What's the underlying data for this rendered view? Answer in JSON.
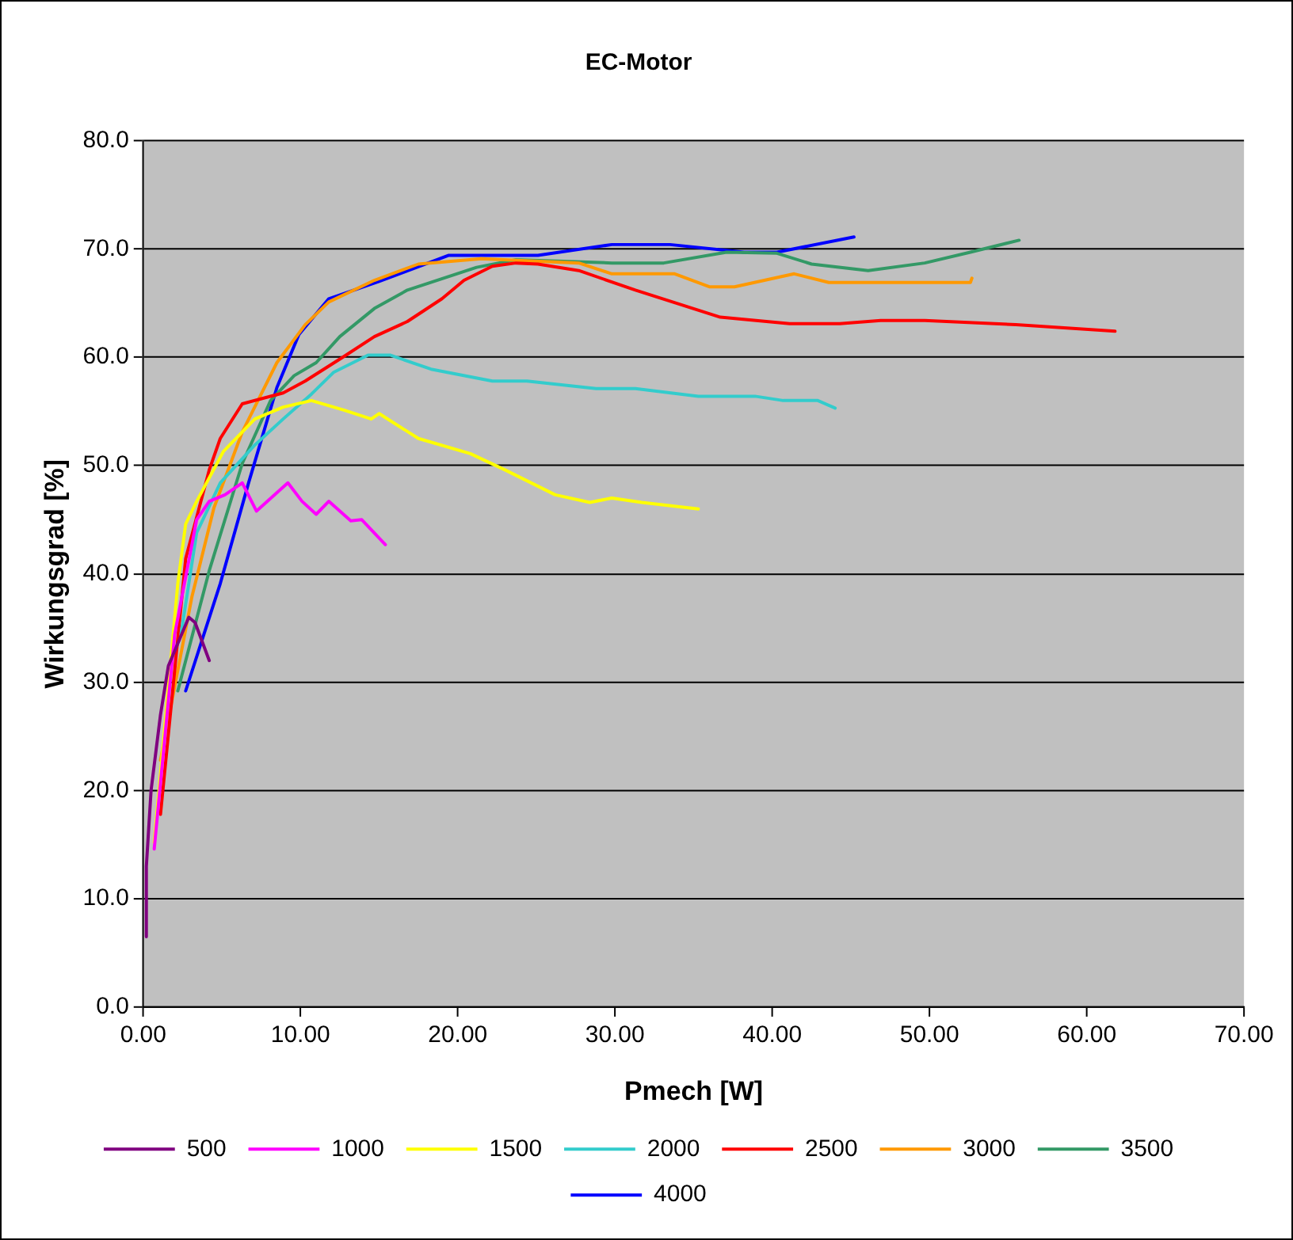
{
  "chart_data": {
    "type": "line",
    "title": "EC-Motor",
    "xlabel": "Pmech [W]",
    "ylabel": "Wirkungsgrad [%]",
    "xlim": [
      0,
      70
    ],
    "xticks": [
      {
        "value": 0,
        "label": "0.00"
      },
      {
        "value": 10,
        "label": "10.00"
      },
      {
        "value": 20,
        "label": "20.00"
      },
      {
        "value": 30,
        "label": "30.00"
      },
      {
        "value": 40,
        "label": "40.00"
      },
      {
        "value": 50,
        "label": "50.00"
      },
      {
        "value": 60,
        "label": "60.00"
      },
      {
        "value": 70,
        "label": "70.00"
      }
    ],
    "ylim": [
      0,
      80
    ],
    "yticks": [
      {
        "value": 0,
        "label": "0.0"
      },
      {
        "value": 10,
        "label": "10.0"
      },
      {
        "value": 20,
        "label": "20.0"
      },
      {
        "value": 30,
        "label": "30.0"
      },
      {
        "value": 40,
        "label": "40.0"
      },
      {
        "value": 50,
        "label": "50.0"
      },
      {
        "value": 60,
        "label": "60.0"
      },
      {
        "value": 70,
        "label": "70.0"
      },
      {
        "value": 80,
        "label": "80.0"
      }
    ],
    "grid": "y",
    "legend": "bottom",
    "marker": "none",
    "line_style": "solid",
    "series": [
      {
        "name": "500",
        "color": "#800080",
        "x": [
          0.2,
          0.2,
          0.5,
          1.1,
          1.6,
          2.9,
          3.3,
          4.2
        ],
        "values": [
          6.5,
          13,
          20,
          27,
          31.5,
          36,
          35.5,
          32
        ]
      },
      {
        "name": "1000",
        "color": "#ff00ff",
        "x": [
          0.7,
          2.0,
          3.4,
          4.2,
          5.2,
          6.3,
          7.2,
          9.2,
          10.1,
          11.0,
          11.8,
          13.2,
          13.9,
          15.4
        ],
        "values": [
          14.6,
          34.4,
          45,
          46.7,
          47.3,
          48.4,
          45.8,
          48.4,
          46.7,
          45.5,
          46.7,
          44.9,
          45,
          42.7
        ]
      },
      {
        "name": "1500",
        "color": "#ffff00",
        "x": [
          0.7,
          2.2,
          2.7,
          3.4,
          5.1,
          7.1,
          8.9,
          10.7,
          12.8,
          14.5,
          15.0,
          17.5,
          20.8,
          23.0,
          26.2,
          28.4,
          29.8,
          31.7,
          35.3
        ],
        "values": [
          15.2,
          39.1,
          44.6,
          46.7,
          51.3,
          54.3,
          55.4,
          56.0,
          55.1,
          54.3,
          54.8,
          52.5,
          51.1,
          49.6,
          47.3,
          46.6,
          47.0,
          46.6,
          46.0
        ]
      },
      {
        "name": "2000",
        "color": "#33cccc",
        "x": [
          2.4,
          3.4,
          4.9,
          7.1,
          8.9,
          10.7,
          12.1,
          14.3,
          15.7,
          18.3,
          22.2,
          24.4,
          28.8,
          31.3,
          35.3,
          38.9,
          40.7,
          42.9,
          44.0
        ],
        "values": [
          34.4,
          43.8,
          48.4,
          51.9,
          54.3,
          56.6,
          58.6,
          60.2,
          60.2,
          58.9,
          57.8,
          57.8,
          57.1,
          57.1,
          56.4,
          56.4,
          56.0,
          56.0,
          55.3
        ]
      },
      {
        "name": "2500",
        "color": "#ff0000",
        "x": [
          1.1,
          2.7,
          4.2,
          4.9,
          6.3,
          8.9,
          10.3,
          12.8,
          14.7,
          16.8,
          19.0,
          20.4,
          22.2,
          23.7,
          25.1,
          27.7,
          31.3,
          36.7,
          41.1,
          44.3,
          46.9,
          49.7,
          55.5,
          61.8
        ],
        "values": [
          17.8,
          41.4,
          49.6,
          52.5,
          55.7,
          56.7,
          57.8,
          60.1,
          61.9,
          63.3,
          65.4,
          67.1,
          68.4,
          68.7,
          68.6,
          68.0,
          66.2,
          63.7,
          63.1,
          63.1,
          63.4,
          63.4,
          63.0,
          62.4
        ]
      },
      {
        "name": "3000",
        "color": "#ff9900",
        "x": [
          1.1,
          3.1,
          4.5,
          6.3,
          8.5,
          10.3,
          11.8,
          14.7,
          17.5,
          21.5,
          27.7,
          29.8,
          33.8,
          36.0,
          37.6,
          41.4,
          43.6,
          52.6,
          52.7
        ],
        "values": [
          22.8,
          37.9,
          46.1,
          53.1,
          59.5,
          63.0,
          65.1,
          67.1,
          68.6,
          69.1,
          68.7,
          67.7,
          67.7,
          66.5,
          66.5,
          67.7,
          66.9,
          66.9,
          67.3
        ]
      },
      {
        "name": "3500",
        "color": "#339966",
        "x": [
          2.2,
          4.2,
          6.3,
          8.1,
          9.6,
          11.0,
          12.5,
          14.7,
          16.8,
          21.2,
          23.7,
          29.8,
          33.1,
          37.1,
          40.3,
          42.5,
          46.1,
          49.7,
          52.6,
          55.7
        ],
        "values": [
          29.2,
          40.3,
          50.2,
          56.0,
          58.3,
          59.5,
          61.9,
          64.5,
          66.2,
          68.3,
          69.0,
          68.7,
          68.7,
          69.7,
          69.6,
          68.6,
          68.0,
          68.7,
          69.7,
          70.8
        ]
      },
      {
        "name": "4000",
        "color": "#0000ff",
        "x": [
          2.7,
          4.9,
          6.7,
          8.5,
          9.9,
          11.8,
          15.0,
          19.4,
          25.1,
          29.8,
          33.5,
          38.2,
          40.3,
          45.2
        ],
        "values": [
          29.2,
          39.1,
          48.4,
          57.2,
          62.1,
          65.4,
          67.0,
          69.4,
          69.4,
          70.4,
          70.4,
          69.7,
          69.7,
          71.1
        ]
      }
    ]
  }
}
